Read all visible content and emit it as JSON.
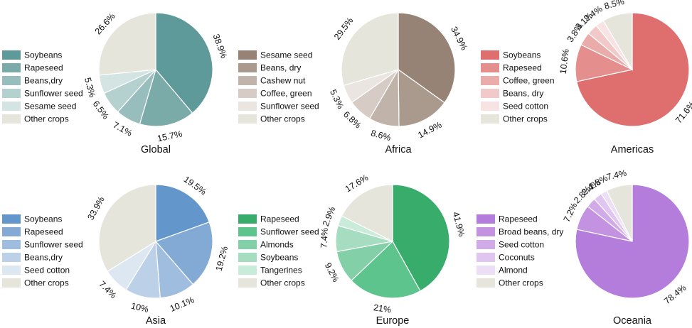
{
  "chart_data": [
    {
      "type": "pie",
      "title": "Global",
      "legend_position": "left",
      "categories": [
        "Soybeans",
        "Rapeseed",
        "Beans,dry",
        "Sunflower seed",
        "Sesame seed",
        "Other crops"
      ],
      "values": [
        38.9,
        15.7,
        7.1,
        6.5,
        5.3,
        26.6
      ],
      "labels": [
        "38.9%",
        "15.7%",
        "7.1%",
        "6.5%",
        "5.3%",
        "26.6%"
      ],
      "colors": [
        "#5e9a99",
        "#7aaba9",
        "#97bdbc",
        "#b5d1cf",
        "#d3e4e2",
        "#e6e5db"
      ]
    },
    {
      "type": "pie",
      "title": "Africa",
      "legend_position": "left",
      "categories": [
        "Sesame seed",
        "Beans, dry",
        "Cashew nut",
        "Coffee, green",
        "Sunflower seed",
        "Other crops"
      ],
      "values": [
        34.9,
        14.9,
        8.6,
        6.8,
        5.3,
        29.5
      ],
      "labels": [
        "34.9%",
        "14.9%",
        "8.6%",
        "6.8%",
        "5.3%",
        "29.5%"
      ],
      "colors": [
        "#968375",
        "#aa9a8e",
        "#c0b3a9",
        "#d6ccc5",
        "#ebe5e1",
        "#e6e5db"
      ]
    },
    {
      "type": "pie",
      "title": "Americas",
      "legend_position": "left",
      "categories": [
        "Soybeans",
        "Rapeseed",
        "Coffee, green",
        "Beans, dry",
        "Seed cotton",
        "Other crops"
      ],
      "values": [
        71.6,
        10.6,
        3.8,
        3.1,
        2.4,
        8.5
      ],
      "labels": [
        "71.6%",
        "10.6%",
        "3.8%",
        "3.1%",
        "2.4%",
        "8.5%"
      ],
      "colors": [
        "#de6f6e",
        "#e48e8d",
        "#eaacab",
        "#f1c9c9",
        "#f7e3e3",
        "#e6e5db"
      ]
    },
    {
      "type": "pie",
      "title": "Asia",
      "legend_position": "left",
      "categories": [
        "Soybeans",
        "Rapeseed",
        "Sunflower seed",
        "Beans,dry",
        "Seed cotton",
        "Other crops"
      ],
      "values": [
        19.5,
        19.2,
        10.1,
        10,
        7.4,
        33.9
      ],
      "labels": [
        "19.5%",
        "19.2%",
        "10.1%",
        "10%",
        "7.4%",
        "33.9%"
      ],
      "colors": [
        "#6397cc",
        "#82aad5",
        "#9fbddf",
        "#bcd1e8",
        "#dce7f2",
        "#e6e5db"
      ]
    },
    {
      "type": "pie",
      "title": "Europe",
      "legend_position": "left",
      "categories": [
        "Rapeseed",
        "Sunflower seed",
        "Almonds",
        "Soybeans",
        "Tangerines",
        "Other crops"
      ],
      "values": [
        41.9,
        21,
        9.2,
        7.4,
        2.9,
        17.6
      ],
      "labels": [
        "41.9%",
        "21%",
        "9.2%",
        "7.4%",
        "2.9%",
        "17.6%"
      ],
      "colors": [
        "#38ad6b",
        "#5cc48c",
        "#83cfa7",
        "#a6dcc0",
        "#c9ebd9",
        "#e6e5db"
      ]
    },
    {
      "type": "pie",
      "title": "Oceania",
      "legend_position": "left",
      "categories": [
        "Rapeseed",
        "Broad beans, dry",
        "Seed cotton",
        "Coconuts",
        "Almond",
        "Other crops"
      ],
      "values": [
        78.4,
        7.2,
        2.8,
        2.4,
        1.8,
        7.4
      ],
      "labels": [
        "78.4%",
        "7.2%",
        "2.8%",
        "2.4%",
        "1.8%",
        "7.4%"
      ],
      "colors": [
        "#b47cdb",
        "#c393e2",
        "#d1abe8",
        "#dfc5ef",
        "#ecdff5",
        "#e6e5db"
      ]
    }
  ]
}
